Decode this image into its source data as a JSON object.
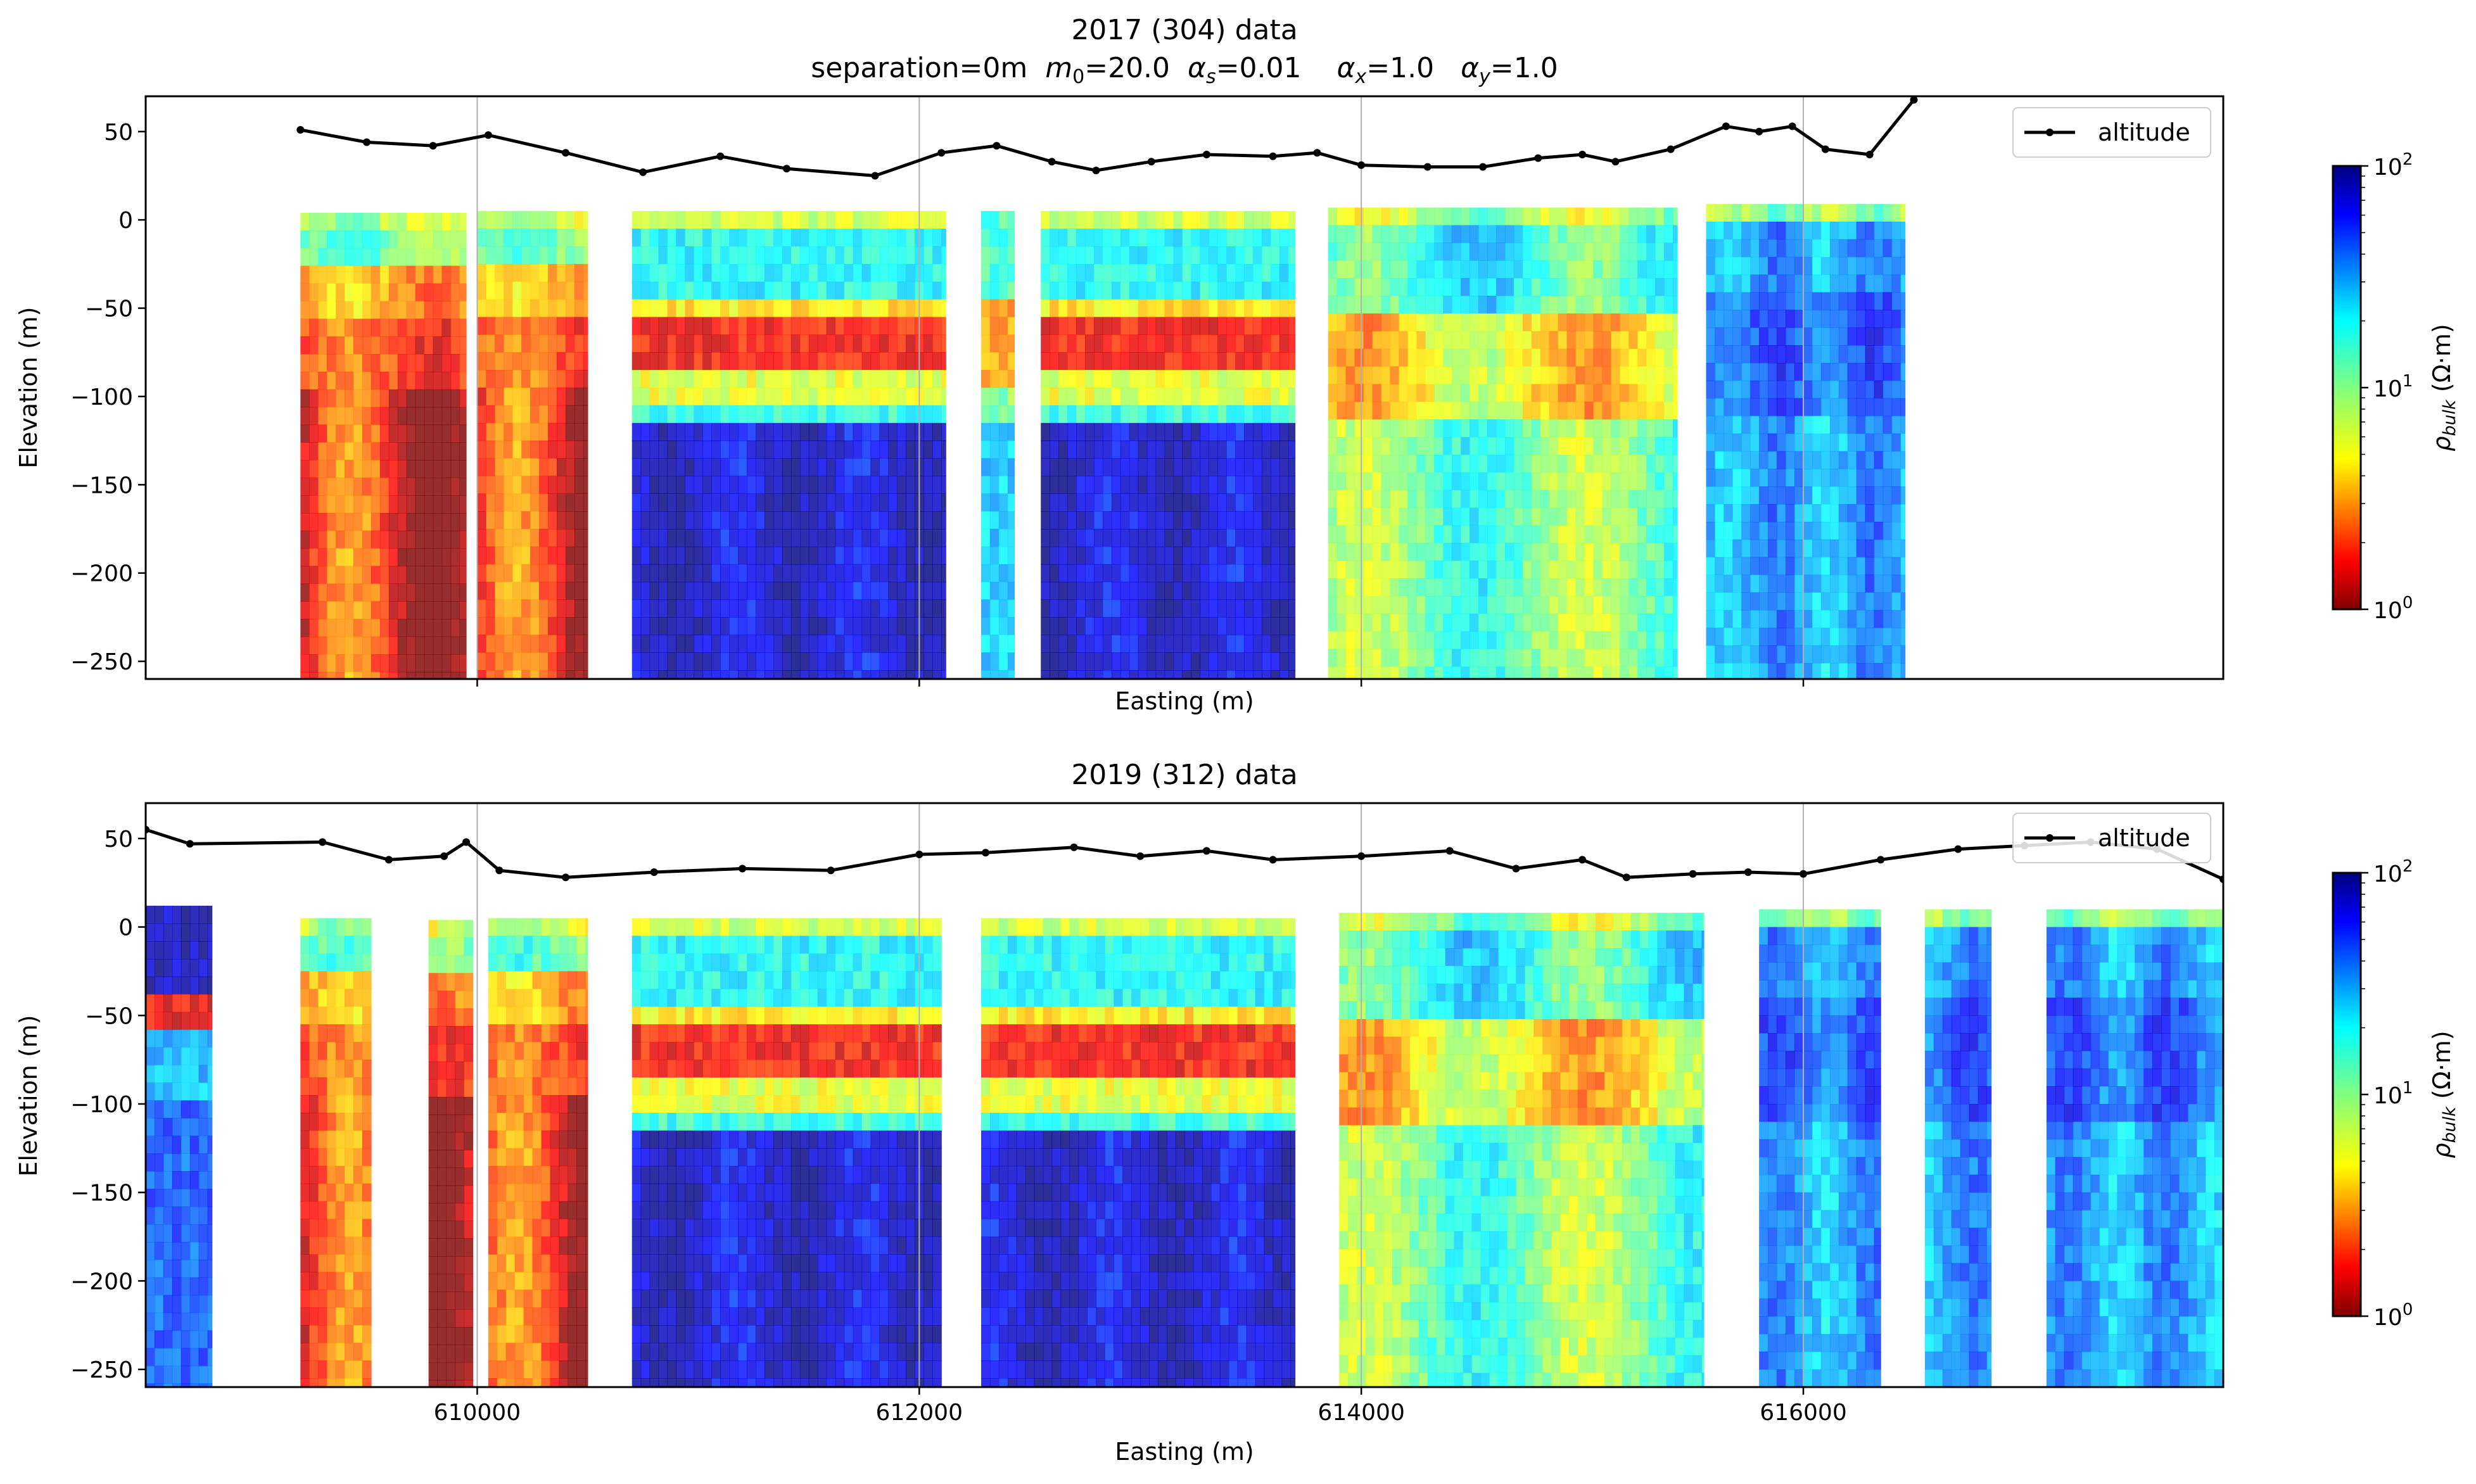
{
  "chart_data": [
    {
      "type": "heatmap",
      "title": "2017 (304) data",
      "subtitle_parts": {
        "separation": "separation=0m",
        "m0_symbol": "m",
        "m0_sub": "0",
        "m0_value": "=20.0",
        "as_symbol": "α",
        "as_sub": "s",
        "as_value": "=0.01",
        "ax_symbol": "α",
        "ax_sub": "x",
        "ax_value": "=1.0",
        "ay_symbol": "α",
        "ay_sub": "y",
        "ay_value": "=1.0"
      },
      "xlabel": "Easting (m)",
      "ylabel": "Elevation (m)",
      "xlim": [
        608500,
        617900
      ],
      "ylim": [
        -260,
        70
      ],
      "yticks": [
        50,
        0,
        -50,
        -100,
        -150,
        -200,
        -250
      ],
      "ytick_labels": [
        "50",
        "0",
        "−50",
        "−100",
        "−150",
        "−200",
        "−250"
      ],
      "xticks": [
        610000,
        612000,
        614000,
        616000
      ],
      "xtick_labels": [],
      "grid": "vertical lines at x ticks",
      "legend": {
        "position": "top-right",
        "entries": [
          "altitude"
        ]
      },
      "colorbar": {
        "label_symbol": "ρ",
        "label_sub": "bulk",
        "label_unit": " (Ω·m)",
        "scale": "log",
        "range": [
          1,
          100
        ],
        "tick_base": "10",
        "tick_exponents": [
          "0",
          "1",
          "2"
        ],
        "colormap": "jet_r"
      },
      "altitude": {
        "name": "altitude",
        "x": [
          609200,
          609500,
          609800,
          610050,
          610400,
          610750,
          611100,
          611400,
          611800,
          612100,
          612350,
          612600,
          612800,
          613050,
          613300,
          613600,
          613800,
          614000,
          614300,
          614550,
          614800,
          615000,
          615150,
          615400,
          615650,
          615800,
          615950,
          616100,
          616300,
          616500
        ],
        "y": [
          51,
          44,
          42,
          48,
          38,
          27,
          36,
          29,
          25,
          38,
          42,
          33,
          28,
          33,
          37,
          36,
          38,
          31,
          30,
          30,
          35,
          37,
          33,
          40,
          53,
          50,
          53,
          40,
          37,
          68
        ]
      },
      "segments": [
        {
          "x0": 609200,
          "x1": 609950,
          "top": 4,
          "profile": "low"
        },
        {
          "x0": 610000,
          "x1": 610500,
          "top": 5,
          "profile": "low"
        },
        {
          "x0": 610700,
          "x1": 612120,
          "top": 5,
          "profile": "layered"
        },
        {
          "x0": 612280,
          "x1": 612430,
          "top": 5,
          "profile": "layered-weak"
        },
        {
          "x0": 612550,
          "x1": 613700,
          "top": 5,
          "profile": "layered"
        },
        {
          "x0": 613850,
          "x1": 615430,
          "top": 7,
          "profile": "moderate"
        },
        {
          "x0": 615560,
          "x1": 616460,
          "top": 9,
          "profile": "resistive"
        }
      ]
    },
    {
      "type": "heatmap",
      "title": "2019 (312) data",
      "xlabel": "Easting (m)",
      "ylabel": "Elevation (m)",
      "xlim": [
        608500,
        617900
      ],
      "ylim": [
        -260,
        70
      ],
      "yticks": [
        50,
        0,
        -50,
        -100,
        -150,
        -200,
        -250
      ],
      "ytick_labels": [
        "50",
        "0",
        "−50",
        "−100",
        "−150",
        "−200",
        "−250"
      ],
      "xticks": [
        610000,
        612000,
        614000,
        616000
      ],
      "xtick_labels": [
        "610000",
        "612000",
        "614000",
        "616000"
      ],
      "grid": "vertical lines at x ticks",
      "legend": {
        "position": "top-right",
        "entries": [
          "altitude"
        ]
      },
      "colorbar": {
        "label_symbol": "ρ",
        "label_sub": "bulk",
        "label_unit": " (Ω·m)",
        "scale": "log",
        "range": [
          1,
          100
        ],
        "tick_base": "10",
        "tick_exponents": [
          "0",
          "1",
          "2"
        ],
        "colormap": "jet_r"
      },
      "altitude": {
        "name": "altitude",
        "x": [
          608500,
          608700,
          609300,
          609600,
          609850,
          609950,
          610100,
          610400,
          610800,
          611200,
          611600,
          612000,
          612300,
          612700,
          613000,
          613300,
          613600,
          614000,
          614400,
          614700,
          615000,
          615200,
          615500,
          615750,
          616000,
          616350,
          616700,
          617000,
          617300,
          617600,
          617900
        ],
        "y": [
          55,
          47,
          48,
          38,
          40,
          48,
          32,
          28,
          31,
          33,
          32,
          41,
          42,
          45,
          40,
          43,
          38,
          40,
          43,
          33,
          38,
          28,
          30,
          31,
          30,
          38,
          44,
          46,
          48,
          44,
          27
        ]
      },
      "segments": [
        {
          "x0": 608500,
          "x1": 608800,
          "top": 12,
          "profile": "edge"
        },
        {
          "x0": 609200,
          "x1": 609520,
          "top": 5,
          "profile": "low"
        },
        {
          "x0": 609780,
          "x1": 609980,
          "top": 4,
          "profile": "low"
        },
        {
          "x0": 610050,
          "x1": 610500,
          "top": 5,
          "profile": "low"
        },
        {
          "x0": 610700,
          "x1": 612100,
          "top": 5,
          "profile": "layered"
        },
        {
          "x0": 612280,
          "x1": 613700,
          "top": 5,
          "profile": "layered"
        },
        {
          "x0": 613900,
          "x1": 615550,
          "top": 8,
          "profile": "moderate"
        },
        {
          "x0": 615800,
          "x1": 616350,
          "top": 10,
          "profile": "resistive"
        },
        {
          "x0": 616550,
          "x1": 616850,
          "top": 10,
          "profile": "resistive"
        },
        {
          "x0": 617100,
          "x1": 617900,
          "top": 10,
          "profile": "resistive"
        }
      ]
    }
  ]
}
